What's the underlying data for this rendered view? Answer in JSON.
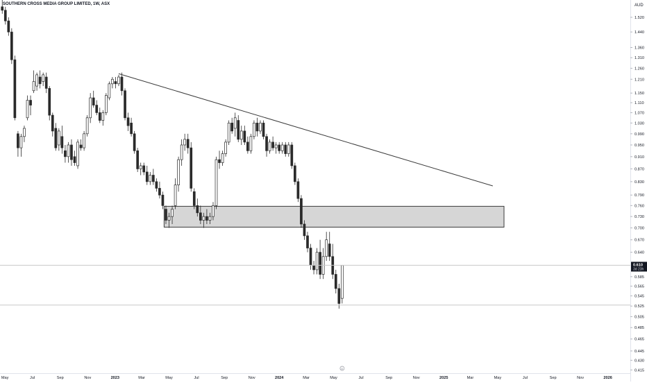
{
  "header": {
    "symbol_title": "SOUTHERN CROSS MEDIA GROUP LIMITED, 1W, ASX",
    "currency": "AUD"
  },
  "price_axis": {
    "ticks": [
      "1.520",
      "1.440",
      "1.360",
      "1.310",
      "1.260",
      "1.210",
      "1.150",
      "1.110",
      "1.070",
      "1.030",
      "0.990",
      "0.950",
      "0.910",
      "0.870",
      "0.830",
      "0.790",
      "0.760",
      "0.730",
      "0.700",
      "0.670",
      "0.640",
      "0.585",
      "0.565",
      "0.545",
      "0.525",
      "0.505",
      "0.485",
      "0.465",
      "0.445",
      "0.430",
      "0.415"
    ],
    "last_price_label": "0.610",
    "countdown_label": "3d 23h"
  },
  "time_axis": {
    "ticks": [
      "May",
      "Jul",
      "Sep",
      "Nov",
      "2023",
      "Mar",
      "May",
      "Jul",
      "Sep",
      "Nov",
      "2024",
      "Mar",
      "May",
      "Jul",
      "Sep",
      "Nov",
      "2025",
      "Mar",
      "May",
      "Jul",
      "Sep",
      "Nov",
      "2026"
    ],
    "event_marker": "D"
  },
  "colors": {
    "bull_fill": "#ffffff",
    "bear_fill": "#2a2a2a",
    "wick": "#2a2a2a",
    "zone_fill": "#cfcfcf",
    "zone_stroke": "#3a3a3a",
    "trendline": "#3a3a3a",
    "price_line": "#c8c8c8"
  },
  "chart_data": {
    "type": "candlestick",
    "title": "SOUTHERN CROSS MEDIA GROUP LIMITED, 1W, ASX",
    "interval": "1W",
    "currency": "AUD",
    "y_scale": "log",
    "ylim": [
      0.41,
      1.62
    ],
    "xlim": [
      "2022-04-20",
      "2026-02-20"
    ],
    "last_price": 0.61,
    "candles": [
      [
        "2022-04-25",
        1.58,
        1.62,
        1.54,
        1.56
      ],
      [
        "2022-05-02",
        1.56,
        1.58,
        1.48,
        1.5
      ],
      [
        "2022-05-09",
        1.5,
        1.52,
        1.42,
        1.44
      ],
      [
        "2022-05-16",
        1.44,
        1.46,
        1.28,
        1.3
      ],
      [
        "2022-05-23",
        1.3,
        1.32,
        1.04,
        1.05
      ],
      [
        "2022-05-30",
        0.99,
        1.0,
        0.91,
        0.94
      ],
      [
        "2022-06-06",
        0.94,
        0.99,
        0.91,
        0.98
      ],
      [
        "2022-06-13",
        0.98,
        1.02,
        0.96,
        1.01
      ],
      [
        "2022-06-20",
        1.05,
        1.14,
        1.04,
        1.12
      ],
      [
        "2022-06-27",
        1.12,
        1.14,
        1.06,
        1.1
      ],
      [
        "2022-07-04",
        1.16,
        1.25,
        1.15,
        1.2
      ],
      [
        "2022-07-11",
        1.18,
        1.24,
        1.16,
        1.23
      ],
      [
        "2022-07-18",
        1.22,
        1.25,
        1.17,
        1.19
      ],
      [
        "2022-07-25",
        1.2,
        1.24,
        1.18,
        1.23
      ],
      [
        "2022-08-01",
        1.22,
        1.24,
        1.15,
        1.17
      ],
      [
        "2022-08-08",
        1.17,
        1.18,
        1.04,
        1.06
      ],
      [
        "2022-08-15",
        1.06,
        1.07,
        0.98,
        1.0
      ],
      [
        "2022-08-22",
        1.01,
        1.03,
        0.93,
        0.94
      ],
      [
        "2022-08-29",
        0.95,
        1.01,
        0.93,
        1.0
      ],
      [
        "2022-09-05",
        0.98,
        1.02,
        0.92,
        0.94
      ],
      [
        "2022-09-12",
        0.93,
        0.95,
        0.89,
        0.91
      ],
      [
        "2022-09-19",
        0.91,
        0.96,
        0.89,
        0.95
      ],
      [
        "2022-09-26",
        0.95,
        0.97,
        0.88,
        0.9
      ],
      [
        "2022-10-03",
        0.91,
        0.93,
        0.88,
        0.89
      ],
      [
        "2022-10-10",
        0.88,
        0.97,
        0.87,
        0.96
      ],
      [
        "2022-10-17",
        0.95,
        0.97,
        0.93,
        0.94
      ],
      [
        "2022-10-24",
        0.94,
        1.0,
        0.93,
        0.99
      ],
      [
        "2022-10-31",
        0.99,
        1.06,
        0.98,
        1.05
      ],
      [
        "2022-11-07",
        1.05,
        1.15,
        1.03,
        1.13
      ],
      [
        "2022-11-14",
        1.13,
        1.16,
        1.09,
        1.1
      ],
      [
        "2022-11-21",
        1.1,
        1.12,
        1.06,
        1.07
      ],
      [
        "2022-11-28",
        1.07,
        1.09,
        1.03,
        1.04
      ],
      [
        "2022-12-05",
        1.04,
        1.08,
        1.02,
        1.07
      ],
      [
        "2022-12-12",
        1.07,
        1.15,
        1.06,
        1.14
      ],
      [
        "2022-12-19",
        1.13,
        1.2,
        1.12,
        1.19
      ],
      [
        "2022-12-26",
        1.19,
        1.22,
        1.17,
        1.21
      ],
      [
        "2023-01-02",
        1.2,
        1.22,
        1.17,
        1.19
      ],
      [
        "2023-01-09",
        1.19,
        1.23,
        1.18,
        1.22
      ],
      [
        "2023-01-16",
        1.22,
        1.24,
        1.14,
        1.16
      ],
      [
        "2023-01-23",
        1.16,
        1.17,
        1.04,
        1.05
      ],
      [
        "2023-01-30",
        1.05,
        1.07,
        1.0,
        1.02
      ],
      [
        "2023-02-06",
        1.03,
        1.05,
        0.98,
        0.99
      ],
      [
        "2023-02-13",
        0.99,
        1.0,
        0.92,
        0.93
      ],
      [
        "2023-02-20",
        0.93,
        0.94,
        0.86,
        0.87
      ],
      [
        "2023-02-27",
        0.87,
        0.89,
        0.85,
        0.88
      ],
      [
        "2023-03-06",
        0.88,
        0.89,
        0.85,
        0.86
      ],
      [
        "2023-03-13",
        0.86,
        0.88,
        0.82,
        0.83
      ],
      [
        "2023-03-20",
        0.83,
        0.86,
        0.82,
        0.85
      ],
      [
        "2023-03-27",
        0.85,
        0.87,
        0.82,
        0.83
      ],
      [
        "2023-04-03",
        0.83,
        0.84,
        0.8,
        0.81
      ],
      [
        "2023-04-10",
        0.81,
        0.83,
        0.78,
        0.79
      ],
      [
        "2023-04-17",
        0.79,
        0.8,
        0.75,
        0.76
      ],
      [
        "2023-04-24",
        0.75,
        0.76,
        0.71,
        0.72
      ],
      [
        "2023-05-01",
        0.72,
        0.74,
        0.7,
        0.73
      ],
      [
        "2023-05-08",
        0.73,
        0.76,
        0.71,
        0.75
      ],
      [
        "2023-05-15",
        0.76,
        0.84,
        0.75,
        0.82
      ],
      [
        "2023-05-22",
        0.82,
        0.91,
        0.8,
        0.9
      ],
      [
        "2023-05-29",
        0.9,
        0.97,
        0.88,
        0.95
      ],
      [
        "2023-06-05",
        0.95,
        0.99,
        0.93,
        0.97
      ],
      [
        "2023-06-12",
        0.97,
        0.99,
        0.92,
        0.94
      ],
      [
        "2023-06-19",
        0.94,
        0.96,
        0.8,
        0.81
      ],
      [
        "2023-06-26",
        0.8,
        0.81,
        0.75,
        0.76
      ],
      [
        "2023-07-03",
        0.76,
        0.78,
        0.73,
        0.74
      ],
      [
        "2023-07-10",
        0.74,
        0.76,
        0.71,
        0.72
      ],
      [
        "2023-07-17",
        0.72,
        0.74,
        0.7,
        0.73
      ],
      [
        "2023-07-24",
        0.73,
        0.75,
        0.71,
        0.72
      ],
      [
        "2023-07-31",
        0.72,
        0.74,
        0.71,
        0.73
      ],
      [
        "2023-08-07",
        0.73,
        0.77,
        0.72,
        0.76
      ],
      [
        "2023-08-14",
        0.76,
        0.91,
        0.75,
        0.9
      ],
      [
        "2023-08-21",
        0.9,
        0.93,
        0.87,
        0.89
      ],
      [
        "2023-08-28",
        0.89,
        0.93,
        0.88,
        0.92
      ],
      [
        "2023-09-04",
        0.92,
        0.97,
        0.91,
        0.96
      ],
      [
        "2023-09-11",
        0.96,
        1.04,
        0.95,
        1.03
      ],
      [
        "2023-09-18",
        1.03,
        1.05,
        0.99,
        1.0
      ],
      [
        "2023-09-25",
        1.01,
        1.07,
        0.98,
        1.05
      ],
      [
        "2023-10-02",
        1.04,
        1.06,
        0.96,
        0.97
      ],
      [
        "2023-10-09",
        0.97,
        1.02,
        0.95,
        1.0
      ],
      [
        "2023-10-16",
        1.0,
        1.02,
        0.95,
        0.96
      ],
      [
        "2023-10-23",
        0.96,
        0.98,
        0.92,
        0.93
      ],
      [
        "2023-10-30",
        0.93,
        0.99,
        0.92,
        0.98
      ],
      [
        "2023-11-06",
        0.98,
        1.04,
        0.97,
        1.03
      ],
      [
        "2023-11-13",
        1.03,
        1.05,
        0.98,
        1.0
      ],
      [
        "2023-11-20",
        1.0,
        1.04,
        0.99,
        1.03
      ],
      [
        "2023-11-27",
        1.03,
        1.04,
        0.97,
        0.98
      ],
      [
        "2023-12-04",
        0.98,
        0.99,
        0.91,
        0.93
      ],
      [
        "2023-12-11",
        0.93,
        0.97,
        0.92,
        0.96
      ],
      [
        "2023-12-18",
        0.96,
        0.98,
        0.93,
        0.94
      ],
      [
        "2023-12-25",
        0.94,
        0.96,
        0.92,
        0.95
      ],
      [
        "2024-01-01",
        0.95,
        0.96,
        0.92,
        0.93
      ],
      [
        "2024-01-08",
        0.93,
        0.96,
        0.92,
        0.95
      ],
      [
        "2024-01-15",
        0.95,
        0.96,
        0.91,
        0.92
      ],
      [
        "2024-01-22",
        0.92,
        0.96,
        0.91,
        0.95
      ],
      [
        "2024-01-29",
        0.95,
        0.96,
        0.87,
        0.88
      ],
      [
        "2024-02-05",
        0.88,
        0.89,
        0.82,
        0.83
      ],
      [
        "2024-02-12",
        0.83,
        0.84,
        0.77,
        0.78
      ],
      [
        "2024-02-19",
        0.78,
        0.79,
        0.7,
        0.71
      ],
      [
        "2024-02-26",
        0.71,
        0.72,
        0.67,
        0.68
      ],
      [
        "2024-03-04",
        0.68,
        0.69,
        0.64,
        0.65
      ],
      [
        "2024-03-11",
        0.65,
        0.66,
        0.6,
        0.61
      ],
      [
        "2024-03-18",
        0.61,
        0.62,
        0.59,
        0.6
      ],
      [
        "2024-03-25",
        0.6,
        0.65,
        0.59,
        0.64
      ],
      [
        "2024-04-01",
        0.64,
        0.67,
        0.58,
        0.59
      ],
      [
        "2024-04-08",
        0.59,
        0.65,
        0.58,
        0.63
      ],
      [
        "2024-04-15",
        0.63,
        0.69,
        0.62,
        0.67
      ],
      [
        "2024-04-22",
        0.66,
        0.69,
        0.62,
        0.63
      ],
      [
        "2024-04-29",
        0.63,
        0.66,
        0.58,
        0.59
      ],
      [
        "2024-05-06",
        0.59,
        0.6,
        0.55,
        0.56
      ],
      [
        "2024-05-13",
        0.56,
        0.57,
        0.52,
        0.53
      ],
      [
        "2024-05-20",
        0.54,
        0.61,
        0.53,
        0.61
      ]
    ],
    "support_zone": {
      "from": "2023-04-20",
      "to": "2025-05-15",
      "low": 0.702,
      "high": 0.758
    },
    "trendline": {
      "start": [
        "2023-01-09",
        1.235
      ],
      "end": [
        "2025-04-20",
        0.817
      ]
    },
    "horizontal_lines": [
      0.61,
      0.527
    ]
  }
}
